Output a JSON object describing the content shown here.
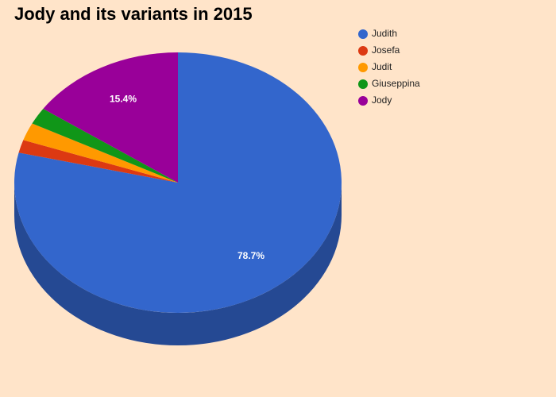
{
  "chart_data": {
    "type": "pie",
    "title": "Jody and its variants in 2015",
    "categories": [
      "Judith",
      "Josefa",
      "Judit",
      "Giuseppina",
      "Jody"
    ],
    "values": [
      78.7,
      1.6,
      2.2,
      2.1,
      15.4
    ],
    "value_labels": [
      "78.7%",
      null,
      null,
      null,
      "15.4%"
    ],
    "colors": [
      "#3366cc",
      "#dc3912",
      "#ff9900",
      "#109618",
      "#990099"
    ],
    "legend": "right",
    "three_d": true
  }
}
